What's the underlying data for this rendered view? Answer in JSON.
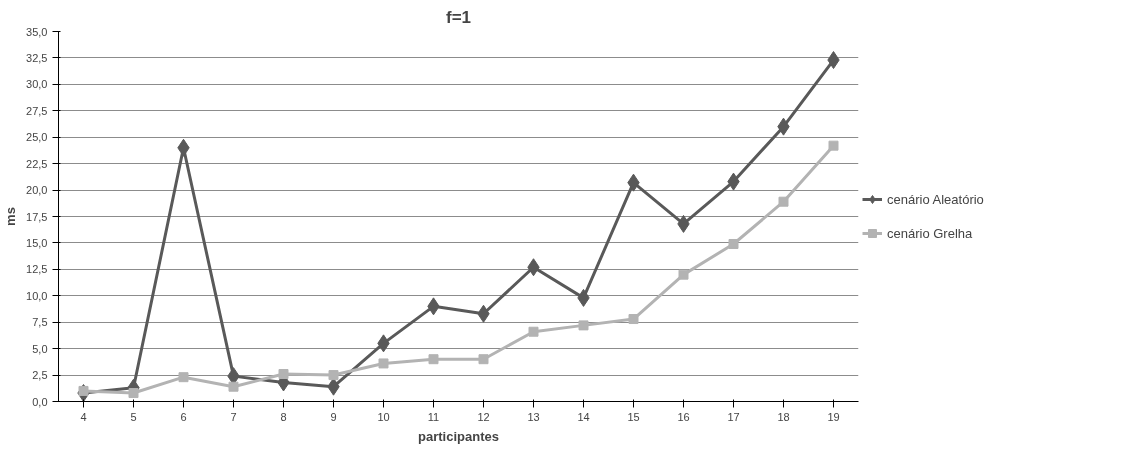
{
  "chart_data": {
    "type": "line",
    "title": "f=1",
    "xlabel": "participantes",
    "ylabel": "ms",
    "categories": [
      "4",
      "5",
      "6",
      "7",
      "8",
      "9",
      "10",
      "11",
      "12",
      "13",
      "14",
      "15",
      "16",
      "17",
      "18",
      "19"
    ],
    "series": [
      {
        "name": "cenário Aleatório",
        "color": "#595959",
        "marker": "diamond",
        "values": [
          0.8,
          1.3,
          24.0,
          2.4,
          1.8,
          1.4,
          5.5,
          9.0,
          8.3,
          12.7,
          9.8,
          20.7,
          16.8,
          20.8,
          26.0,
          32.3
        ]
      },
      {
        "name": "cenário Grelha",
        "color": "#b3b3b3",
        "marker": "square",
        "values": [
          1.0,
          0.8,
          2.3,
          1.4,
          2.6,
          2.5,
          3.6,
          4.0,
          4.0,
          6.6,
          7.2,
          7.8,
          12.0,
          14.9,
          18.9,
          24.2
        ]
      }
    ],
    "ylim": [
      0,
      35
    ],
    "yticks": [
      {
        "value": 0,
        "label": "0,0"
      },
      {
        "value": 2.5,
        "label": "2,5"
      },
      {
        "value": 5,
        "label": "5,0"
      },
      {
        "value": 7.5,
        "label": "7,5"
      },
      {
        "value": 10,
        "label": "10,0"
      },
      {
        "value": 12.5,
        "label": "12,5"
      },
      {
        "value": 15,
        "label": "15,0"
      },
      {
        "value": 17.5,
        "label": "17,5"
      },
      {
        "value": 20,
        "label": "20,0"
      },
      {
        "value": 22.5,
        "label": "22,5"
      },
      {
        "value": 25,
        "label": "25,0"
      },
      {
        "value": 27.5,
        "label": "27,5"
      },
      {
        "value": 30,
        "label": "30,0"
      },
      {
        "value": 32.5,
        "label": "32,5"
      },
      {
        "value": 35,
        "label": "35,0"
      }
    ],
    "grid": "y",
    "legend": "right",
    "line_style": "solid"
  }
}
